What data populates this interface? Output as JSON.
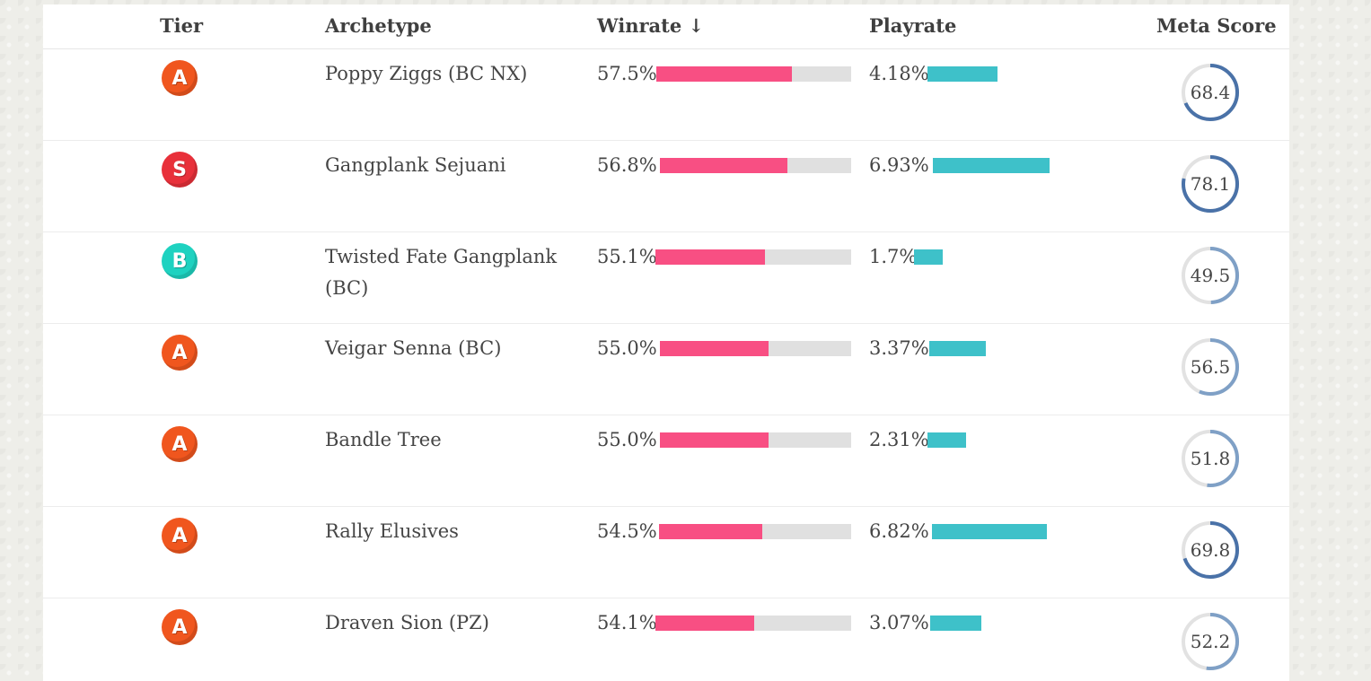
{
  "header": {
    "tier": "Tier",
    "archetype": "Archetype",
    "winrate": "Winrate ↓",
    "playrate": "Playrate",
    "meta_score": "Meta Score"
  },
  "colors": {
    "tier_S": "#e8303a",
    "tier_A": "#f0561e",
    "tier_B": "#1ed2c0",
    "winrate_bar": "#f84f83",
    "playrate_bar": "#3ec1c9",
    "meta_ring_high": "#4a72a8",
    "meta_ring_low": "#7fa0c6"
  },
  "rows": [
    {
      "tier": "A",
      "archetype": "Poppy Ziggs (BC NX)",
      "winrate": "57.5%",
      "winrate_value": 57.5,
      "playrate": "4.18%",
      "playrate_value": 4.18,
      "meta_score": "68.4",
      "meta_value": 68.4
    },
    {
      "tier": "S",
      "archetype": "Gangplank Sejuani",
      "winrate": "56.8%",
      "winrate_value": 56.8,
      "playrate": "6.93%",
      "playrate_value": 6.93,
      "meta_score": "78.1",
      "meta_value": 78.1
    },
    {
      "tier": "B",
      "archetype": "Twisted Fate Gangplank (BC)",
      "winrate": "55.1%",
      "winrate_value": 55.1,
      "playrate": "1.7%",
      "playrate_value": 1.7,
      "meta_score": "49.5",
      "meta_value": 49.5
    },
    {
      "tier": "A",
      "archetype": "Veigar Senna (BC)",
      "winrate": "55.0%",
      "winrate_value": 55.0,
      "playrate": "3.37%",
      "playrate_value": 3.37,
      "meta_score": "56.5",
      "meta_value": 56.5
    },
    {
      "tier": "A",
      "archetype": "Bandle Tree",
      "winrate": "55.0%",
      "winrate_value": 55.0,
      "playrate": "2.31%",
      "playrate_value": 2.31,
      "meta_score": "51.8",
      "meta_value": 51.8
    },
    {
      "tier": "A",
      "archetype": "Rally Elusives",
      "winrate": "54.5%",
      "winrate_value": 54.5,
      "playrate": "6.82%",
      "playrate_value": 6.82,
      "meta_score": "69.8",
      "meta_value": 69.8
    },
    {
      "tier": "A",
      "archetype": "Draven Sion (PZ)",
      "winrate": "54.1%",
      "winrate_value": 54.1,
      "playrate": "3.07%",
      "playrate_value": 3.07,
      "meta_score": "52.2",
      "meta_value": 52.2
    }
  ]
}
